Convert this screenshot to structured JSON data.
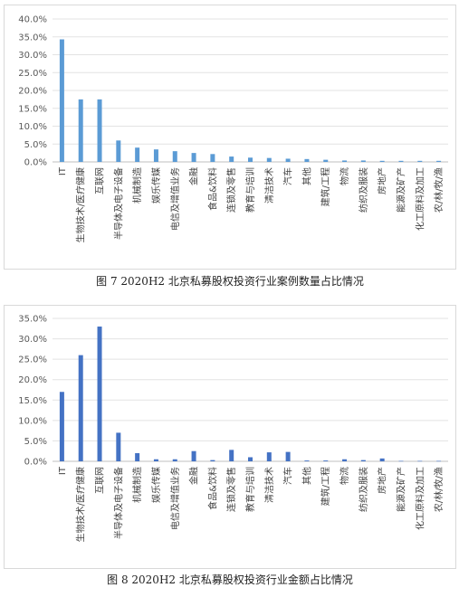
{
  "figures": [
    {
      "caption": "图 7   2020H2 北京私募股权投资行业案例数量占比情况"
    },
    {
      "caption": "图 8   2020H2 北京私募股权投资行业金额占比情况"
    }
  ],
  "chart_data": [
    {
      "type": "bar",
      "title": "",
      "xlabel": "",
      "ylabel": "",
      "ylim": [
        0,
        40
      ],
      "y_ticks": [
        "0.0%",
        "5.0%",
        "10.0%",
        "15.0%",
        "20.0%",
        "25.0%",
        "30.0%",
        "35.0%",
        "40.0%"
      ],
      "grid": true,
      "bar_color": "#5b9bd5",
      "categories": [
        "IT",
        "生物技术/医疗健康",
        "互联网",
        "半导体及电子设备",
        "机械制造",
        "娱乐传媒",
        "电信及增值业务",
        "金融",
        "食品&饮料",
        "连锁及零售",
        "教育与培训",
        "清洁技术",
        "汽车",
        "其他",
        "建筑/工程",
        "物流",
        "纺织及服装",
        "房地产",
        "能源及矿产",
        "化工原料及加工",
        "农/林/牧/渔"
      ],
      "values": [
        34.3,
        17.5,
        17.5,
        6.0,
        4.0,
        3.5,
        3.0,
        2.5,
        2.2,
        1.5,
        1.2,
        1.1,
        0.9,
        0.8,
        0.6,
        0.4,
        0.4,
        0.3,
        0.3,
        0.3,
        0.3
      ]
    },
    {
      "type": "bar",
      "title": "",
      "xlabel": "",
      "ylabel": "",
      "ylim": [
        0,
        35
      ],
      "y_ticks": [
        "0.0%",
        "5.0%",
        "10.0%",
        "15.0%",
        "20.0%",
        "25.0%",
        "30.0%",
        "35.0%"
      ],
      "grid": true,
      "bar_color": "#4472c4",
      "categories": [
        "IT",
        "生物技术/医疗健康",
        "互联网",
        "半导体及电子设备",
        "机械制造",
        "娱乐传媒",
        "电信及增值业务",
        "金融",
        "食品&饮料",
        "连锁及零售",
        "教育与培训",
        "清洁技术",
        "汽车",
        "其他",
        "建筑/工程",
        "物流",
        "纺织及服装",
        "房地产",
        "能源及矿产",
        "化工原料及加工",
        "农/林/牧/渔"
      ],
      "values": [
        17.0,
        26.0,
        33.0,
        7.0,
        2.0,
        0.5,
        0.5,
        2.5,
        0.3,
        2.8,
        1.0,
        2.2,
        2.3,
        0.2,
        0.2,
        0.5,
        0.3,
        0.7,
        0.1,
        0.1,
        0.1
      ]
    }
  ]
}
